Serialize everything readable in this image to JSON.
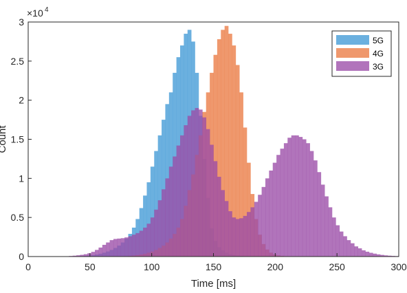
{
  "chart_data": {
    "type": "histogram",
    "title": "",
    "xlabel": "Time [ms]",
    "ylabel": "Count",
    "xlim": [
      0,
      300
    ],
    "ylim": [
      0,
      30000
    ],
    "y_exponent_label": "×10",
    "y_exponent_power": "4",
    "x_ticks": [
      {
        "value": 0,
        "label": "0"
      },
      {
        "value": 50,
        "label": "50"
      },
      {
        "value": 100,
        "label": "100"
      },
      {
        "value": 150,
        "label": "150"
      },
      {
        "value": 200,
        "label": "200"
      },
      {
        "value": 250,
        "label": "250"
      },
      {
        "value": 300,
        "label": "300"
      }
    ],
    "y_ticks": [
      {
        "value": 0,
        "label": "0"
      },
      {
        "value": 5000,
        "label": "0.5"
      },
      {
        "value": 10000,
        "label": "1"
      },
      {
        "value": 15000,
        "label": "1.5"
      },
      {
        "value": 20000,
        "label": "2"
      },
      {
        "value": 25000,
        "label": "2.5"
      },
      {
        "value": 30000,
        "label": "3"
      }
    ],
    "grid": false,
    "legend_position": "top-right",
    "bin_start": 0,
    "bin_width": 3,
    "series": [
      {
        "name": "5G",
        "color": "#4a9fd8",
        "opacity": 0.82,
        "values": [
          0,
          0,
          0,
          0,
          0,
          0,
          0,
          0,
          0,
          0,
          10,
          10,
          20,
          30,
          50,
          80,
          120,
          180,
          260,
          360,
          490,
          650,
          850,
          1100,
          1400,
          1800,
          2300,
          2900,
          3700,
          4800,
          6200,
          7800,
          9500,
          11500,
          13500,
          15500,
          17500,
          19500,
          21000,
          23500,
          25500,
          27000,
          28500,
          29000,
          27500,
          23500,
          18000,
          12500,
          7500,
          3600,
          2000,
          1200,
          800,
          500,
          300,
          200,
          120,
          80,
          50,
          30,
          20,
          10,
          10,
          0,
          0,
          0,
          0,
          0,
          0,
          0,
          0,
          0,
          0,
          0,
          0,
          0,
          0,
          0,
          0,
          0,
          0,
          0,
          0,
          0,
          0,
          0,
          0,
          0,
          0,
          0,
          0,
          0,
          0,
          0,
          0,
          0,
          0,
          0,
          0,
          0
        ]
      },
      {
        "name": "4G",
        "color": "#ea7b44",
        "opacity": 0.78,
        "values": [
          0,
          0,
          0,
          0,
          0,
          0,
          0,
          0,
          0,
          0,
          0,
          0,
          0,
          0,
          0,
          0,
          0,
          0,
          0,
          0,
          0,
          0,
          0,
          10,
          20,
          30,
          50,
          80,
          120,
          180,
          260,
          360,
          490,
          650,
          850,
          1100,
          1400,
          1800,
          2300,
          2900,
          3700,
          4800,
          6500,
          8500,
          10500,
          13000,
          15500,
          18500,
          21000,
          23500,
          25800,
          27800,
          29000,
          29500,
          28500,
          27000,
          24500,
          21000,
          16500,
          12000,
          8000,
          4800,
          2800,
          1600,
          900,
          500,
          280,
          150,
          80,
          40,
          20,
          10,
          0,
          0,
          0,
          0,
          0,
          0,
          0,
          0,
          0,
          0,
          0,
          0,
          0,
          0,
          0,
          0,
          0,
          0,
          0,
          0,
          0,
          0,
          0,
          0,
          0,
          0,
          0,
          0
        ]
      },
      {
        "name": "3G",
        "color": "#9b4da8",
        "opacity": 0.78,
        "values": [
          0,
          0,
          0,
          0,
          0,
          0,
          0,
          0,
          10,
          20,
          40,
          70,
          110,
          160,
          220,
          300,
          420,
          600,
          850,
          1150,
          1500,
          1800,
          2100,
          2250,
          2300,
          2350,
          2450,
          2600,
          2800,
          3000,
          3300,
          3700,
          4200,
          5000,
          6000,
          7200,
          8600,
          10000,
          11500,
          12800,
          14200,
          15500,
          16800,
          18000,
          18700,
          19000,
          18800,
          17800,
          16300,
          14300,
          12200,
          10200,
          8500,
          7100,
          5800,
          5000,
          4800,
          4900,
          5200,
          5700,
          6300,
          7000,
          7900,
          8900,
          10000,
          11000,
          12000,
          13000,
          13800,
          14500,
          15200,
          15500,
          15500,
          15300,
          15000,
          14500,
          13500,
          12300,
          10800,
          9200,
          7700,
          6300,
          5000,
          4000,
          3200,
          2600,
          2100,
          1700,
          1300,
          1050,
          800,
          620,
          480,
          370,
          280,
          210,
          150,
          110,
          80,
          60
        ]
      }
    ]
  }
}
